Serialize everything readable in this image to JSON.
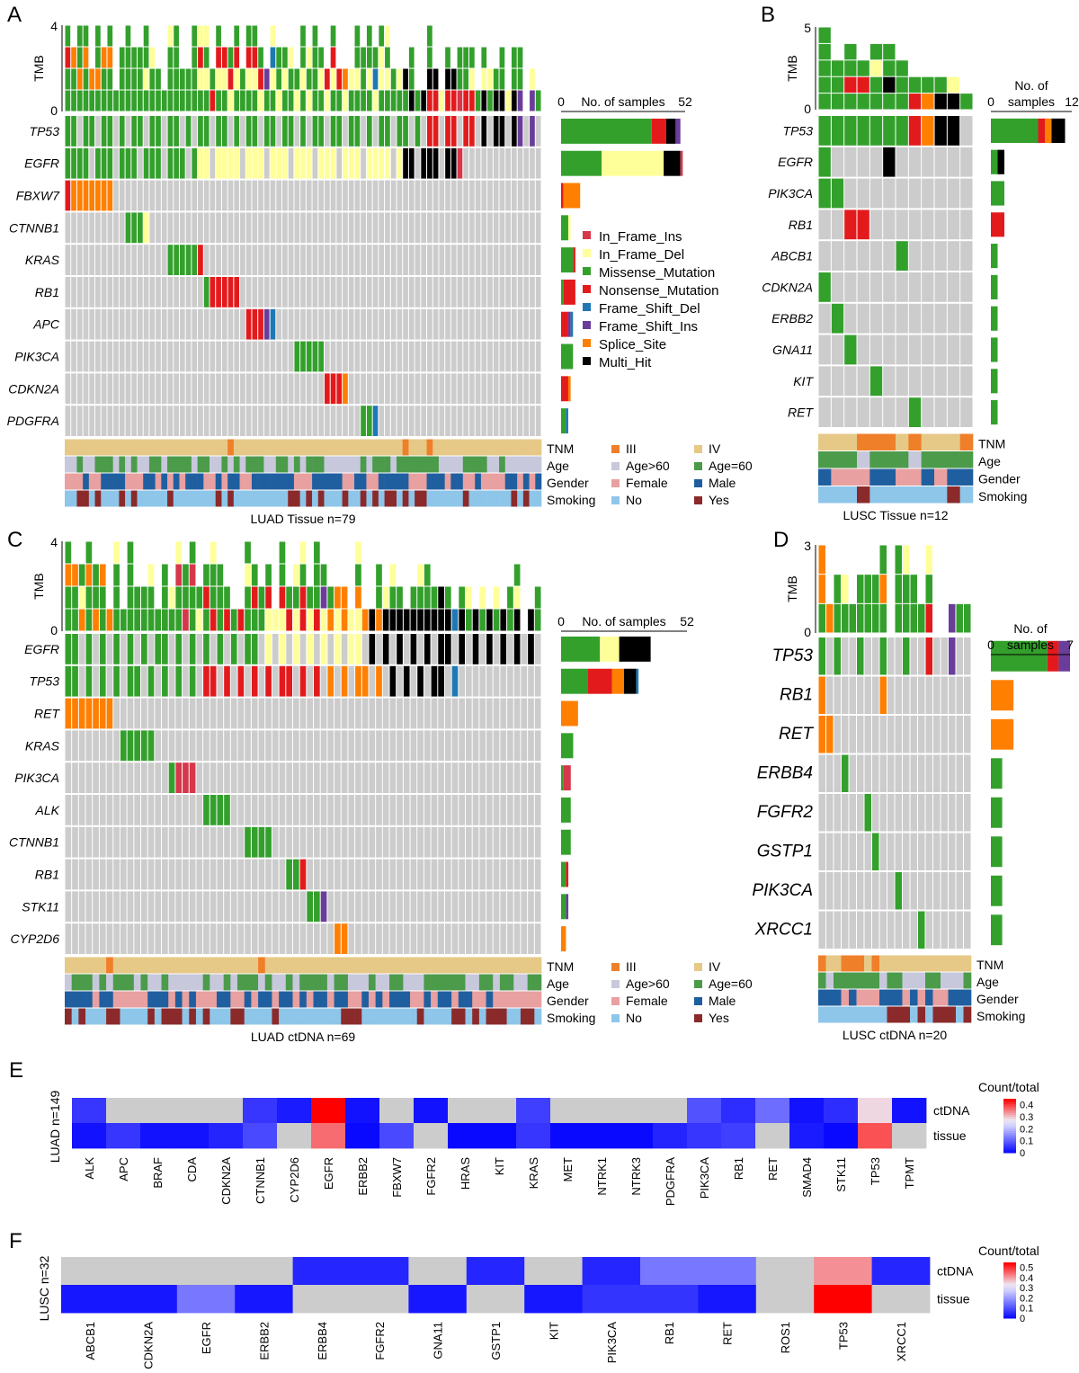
{
  "colors": {
    "In_Frame_Ins": "#d6374b",
    "In_Frame_Del": "#ffff99",
    "Missense_Mutation": "#33a02c",
    "Nonsense_Mutation": "#e31a1c",
    "Frame_Shift_Del": "#1f78b4",
    "Frame_Shift_Ins": "#6a3d9a",
    "Splice_Site": "#ff7f00",
    "Multi_Hit": "#000000",
    "none": "#cccccc",
    "III": "#f07f2a",
    "IV": "#e6c987",
    "Age>60": "#c8c8dc",
    "Age=60": "#4b9b4b",
    "Female": "#e8a0a0",
    "Male": "#1f5fa0",
    "No": "#8ec6ea",
    "Yes": "#8b2a2a"
  },
  "legend": {
    "mutation_types": [
      "In_Frame_Ins",
      "In_Frame_Del",
      "Missense_Mutation",
      "Nonsense_Mutation",
      "Frame_Shift_Del",
      "Frame_Shift_Ins",
      "Splice_Site",
      "Multi_Hit"
    ],
    "clinical_rows": [
      "TNM",
      "Age",
      "Gender",
      "Smoking"
    ],
    "clinical_pairs": [
      [
        "III",
        "IV"
      ],
      [
        "Age>60",
        "Age=60"
      ],
      [
        "Female",
        "Male"
      ],
      [
        "No",
        "Yes"
      ]
    ]
  },
  "chart_data": [
    {
      "type": "heatmap",
      "panel": "A",
      "caption": "LUAD  Tissue n=79",
      "tmb_label": "TMB",
      "tmb_ticks": [
        "0",
        "4"
      ],
      "samples_title": "No. of samples",
      "samples_ticks": [
        "0",
        "52"
      ],
      "samples_max": 52,
      "n_samples": 79,
      "genes": [
        "TP53",
        "EGFR",
        "FBXW7",
        "CTNNB1",
        "KRAS",
        "RB1",
        "APC",
        "PIK3CA",
        "CDKN2A",
        "PDGFRA"
      ],
      "gene_counts": [
        {
          "Missense_Mutation": 38,
          "Nonsense_Mutation": 6,
          "Frame_Shift_Ins": 2,
          "Multi_Hit": 4
        },
        {
          "In_Frame_Del": 26,
          "Missense_Mutation": 17,
          "In_Frame_Ins": 1,
          "Multi_Hit": 7
        },
        {
          "Splice_Site": 7,
          "Nonsense_Mutation": 1
        },
        {
          "Missense_Mutation": 3,
          "In_Frame_Del": 1
        },
        {
          "Missense_Mutation": 5,
          "Nonsense_Mutation": 1
        },
        {
          "Nonsense_Mutation": 5,
          "Missense_Mutation": 1
        },
        {
          "Nonsense_Mutation": 3,
          "Frame_Shift_Ins": 1,
          "Frame_Shift_Del": 1
        },
        {
          "Missense_Mutation": 5
        },
        {
          "Nonsense_Mutation": 3,
          "Splice_Site": 1
        },
        {
          "Missense_Mutation": 2,
          "Frame_Shift_Del": 1
        }
      ],
      "tnm_exceptions": {
        "III": [
          27,
          56,
          60
        ]
      },
      "tnm_default": "IV"
    },
    {
      "type": "heatmap",
      "panel": "B",
      "caption": "LUSC  Tissue n=12",
      "tmb_label": "TMB",
      "tmb_ticks": [
        "0",
        "5"
      ],
      "samples_title": "No. of samples",
      "samples_ticks": [
        "0",
        "12"
      ],
      "samples_max": 12,
      "n_samples": 12,
      "genes": [
        "TP53",
        "EGFR",
        "PIK3CA",
        "RB1",
        "ABCB1",
        "CDKN2A",
        "ERBB2",
        "GNA11",
        "KIT",
        "RET"
      ],
      "gene_counts": [
        {
          "Nonsense_Mutation": 1,
          "Missense_Mutation": 7,
          "Splice_Site": 1,
          "Multi_Hit": 2
        },
        {
          "Missense_Mutation": 1,
          "Multi_Hit": 1
        },
        {
          "Missense_Mutation": 2
        },
        {
          "Nonsense_Mutation": 2
        },
        {
          "Missense_Mutation": 1
        },
        {
          "Missense_Mutation": 1
        },
        {
          "Missense_Mutation": 1
        },
        {
          "Missense_Mutation": 1
        },
        {
          "Missense_Mutation": 1
        },
        {
          "Missense_Mutation": 1
        }
      ],
      "tnm_exceptions": {
        "III": [
          3,
          4,
          5,
          7,
          11
        ]
      },
      "tnm_default": "IV"
    },
    {
      "type": "heatmap",
      "panel": "C",
      "caption": "LUAD  ctDNA n=69",
      "tmb_label": "TMB",
      "tmb_ticks": [
        "0",
        "4"
      ],
      "samples_title": "No. of samples",
      "samples_ticks": [
        "0",
        "52"
      ],
      "samples_max": 52,
      "n_samples": 69,
      "genes": [
        "EGFR",
        "TP53",
        "RET",
        "KRAS",
        "PIK3CA",
        "ALK",
        "CTNNB1",
        "RB1",
        "STK11",
        "CYP2D6"
      ],
      "gene_counts": [
        {
          "Missense_Mutation": 16,
          "In_Frame_Del": 8,
          "Multi_Hit": 13
        },
        {
          "Splice_Site": 5,
          "Missense_Mutation": 11,
          "Nonsense_Mutation": 10,
          "Frame_Shift_Del": 1,
          "Multi_Hit": 5
        },
        {
          "Splice_Site": 7
        },
        {
          "Missense_Mutation": 5
        },
        {
          "Missense_Mutation": 1,
          "In_Frame_Ins": 3
        },
        {
          "Missense_Mutation": 4
        },
        {
          "Missense_Mutation": 4
        },
        {
          "Missense_Mutation": 2,
          "Nonsense_Mutation": 1
        },
        {
          "Missense_Mutation": 2,
          "Frame_Shift_Ins": 1
        },
        {
          "Splice_Site": 2
        }
      ],
      "tnm_exceptions": {
        "III": [
          6,
          28
        ]
      },
      "tnm_default": "IV"
    },
    {
      "type": "heatmap",
      "panel": "D",
      "caption": "LUSC  ctDNA n=20",
      "tmb_label": "TMB",
      "tmb_ticks": [
        "0",
        "3"
      ],
      "samples_title": "No. of samples",
      "samples_ticks": [
        "0",
        "7"
      ],
      "samples_max": 7,
      "n_samples": 20,
      "genes": [
        "TP53",
        "RB1",
        "RET",
        "ERBB4",
        "FGFR2",
        "GSTP1",
        "PIK3CA",
        "XRCC1"
      ],
      "gene_counts": [
        {
          "Frame_Shift_Ins": 1,
          "Missense_Mutation": 5,
          "Nonsense_Mutation": 1
        },
        {
          "Splice_Site": 2
        },
        {
          "Splice_Site": 2
        },
        {
          "Missense_Mutation": 1
        },
        {
          "Missense_Mutation": 1
        },
        {
          "Missense_Mutation": 1
        },
        {
          "Missense_Mutation": 1
        },
        {
          "Missense_Mutation": 1
        }
      ],
      "tnm_exceptions": {
        "III": [
          0,
          3,
          4,
          5,
          7
        ]
      },
      "tnm_default": "IV"
    },
    {
      "type": "heatmap",
      "panel": "E",
      "ylabel": "LUAD n=149",
      "rows": [
        "ctDNA",
        "tissue"
      ],
      "legend_title": "Count/total",
      "legend_ticks": [
        "0",
        "0.1",
        "0.2",
        "0.3",
        "0.4"
      ],
      "vmax": 0.45,
      "genes": [
        "ALK",
        "APC",
        "BRAF",
        "CDA",
        "CDKN2A",
        "CTNNB1",
        "CYP2D6",
        "EGFR",
        "ERBB2",
        "FBXW7",
        "FGFR2",
        "HRAS",
        "KIT",
        "KRAS",
        "MET",
        "NTRK1",
        "NTRK3",
        "PDGFRA",
        "PIK3CA",
        "RB1",
        "RET",
        "SMAD4",
        "STK11",
        "TP53",
        "TPMT"
      ],
      "values": [
        [
          0.06,
          null,
          null,
          null,
          null,
          0.06,
          0.03,
          0.54,
          0.02,
          null,
          0.02,
          null,
          null,
          0.07,
          null,
          null,
          null,
          null,
          0.09,
          0.05,
          0.12,
          0.02,
          0.05,
          0.29,
          0.02
        ],
        [
          0.02,
          0.06,
          0.02,
          0.02,
          0.04,
          0.08,
          null,
          0.37,
          0.01,
          0.08,
          null,
          0.01,
          0.01,
          0.06,
          0.01,
          0.01,
          0.01,
          0.04,
          0.06,
          0.07,
          null,
          0.03,
          0.01,
          0.39,
          null
        ]
      ]
    },
    {
      "type": "heatmap",
      "panel": "F",
      "ylabel": "LUSC n=32",
      "rows": [
        "ctDNA",
        "tissue"
      ],
      "legend_title": "Count/total",
      "legend_ticks": [
        "0",
        "0.1",
        "0.2",
        "0.3",
        "0.4",
        "0.5"
      ],
      "vmax": 0.55,
      "genes": [
        "ABCB1",
        "CDKN2A",
        "EGFR",
        "ERBB2",
        "ERBB4",
        "FGFR2",
        "GNA11",
        "GSTP1",
        "KIT",
        "PIK3CA",
        "RB1",
        "RET",
        "ROS1",
        "TP53",
        "XRCC1"
      ],
      "values": [
        [
          null,
          null,
          null,
          null,
          0.05,
          0.05,
          null,
          0.05,
          null,
          0.05,
          0.16,
          0.16,
          null,
          0.42,
          0.05
        ],
        [
          0.03,
          0.03,
          0.16,
          0.03,
          null,
          null,
          0.03,
          null,
          0.03,
          0.07,
          0.07,
          0.03,
          null,
          0.55,
          null
        ]
      ]
    }
  ],
  "panel_letters": [
    "A",
    "B",
    "C",
    "D",
    "E",
    "F"
  ]
}
